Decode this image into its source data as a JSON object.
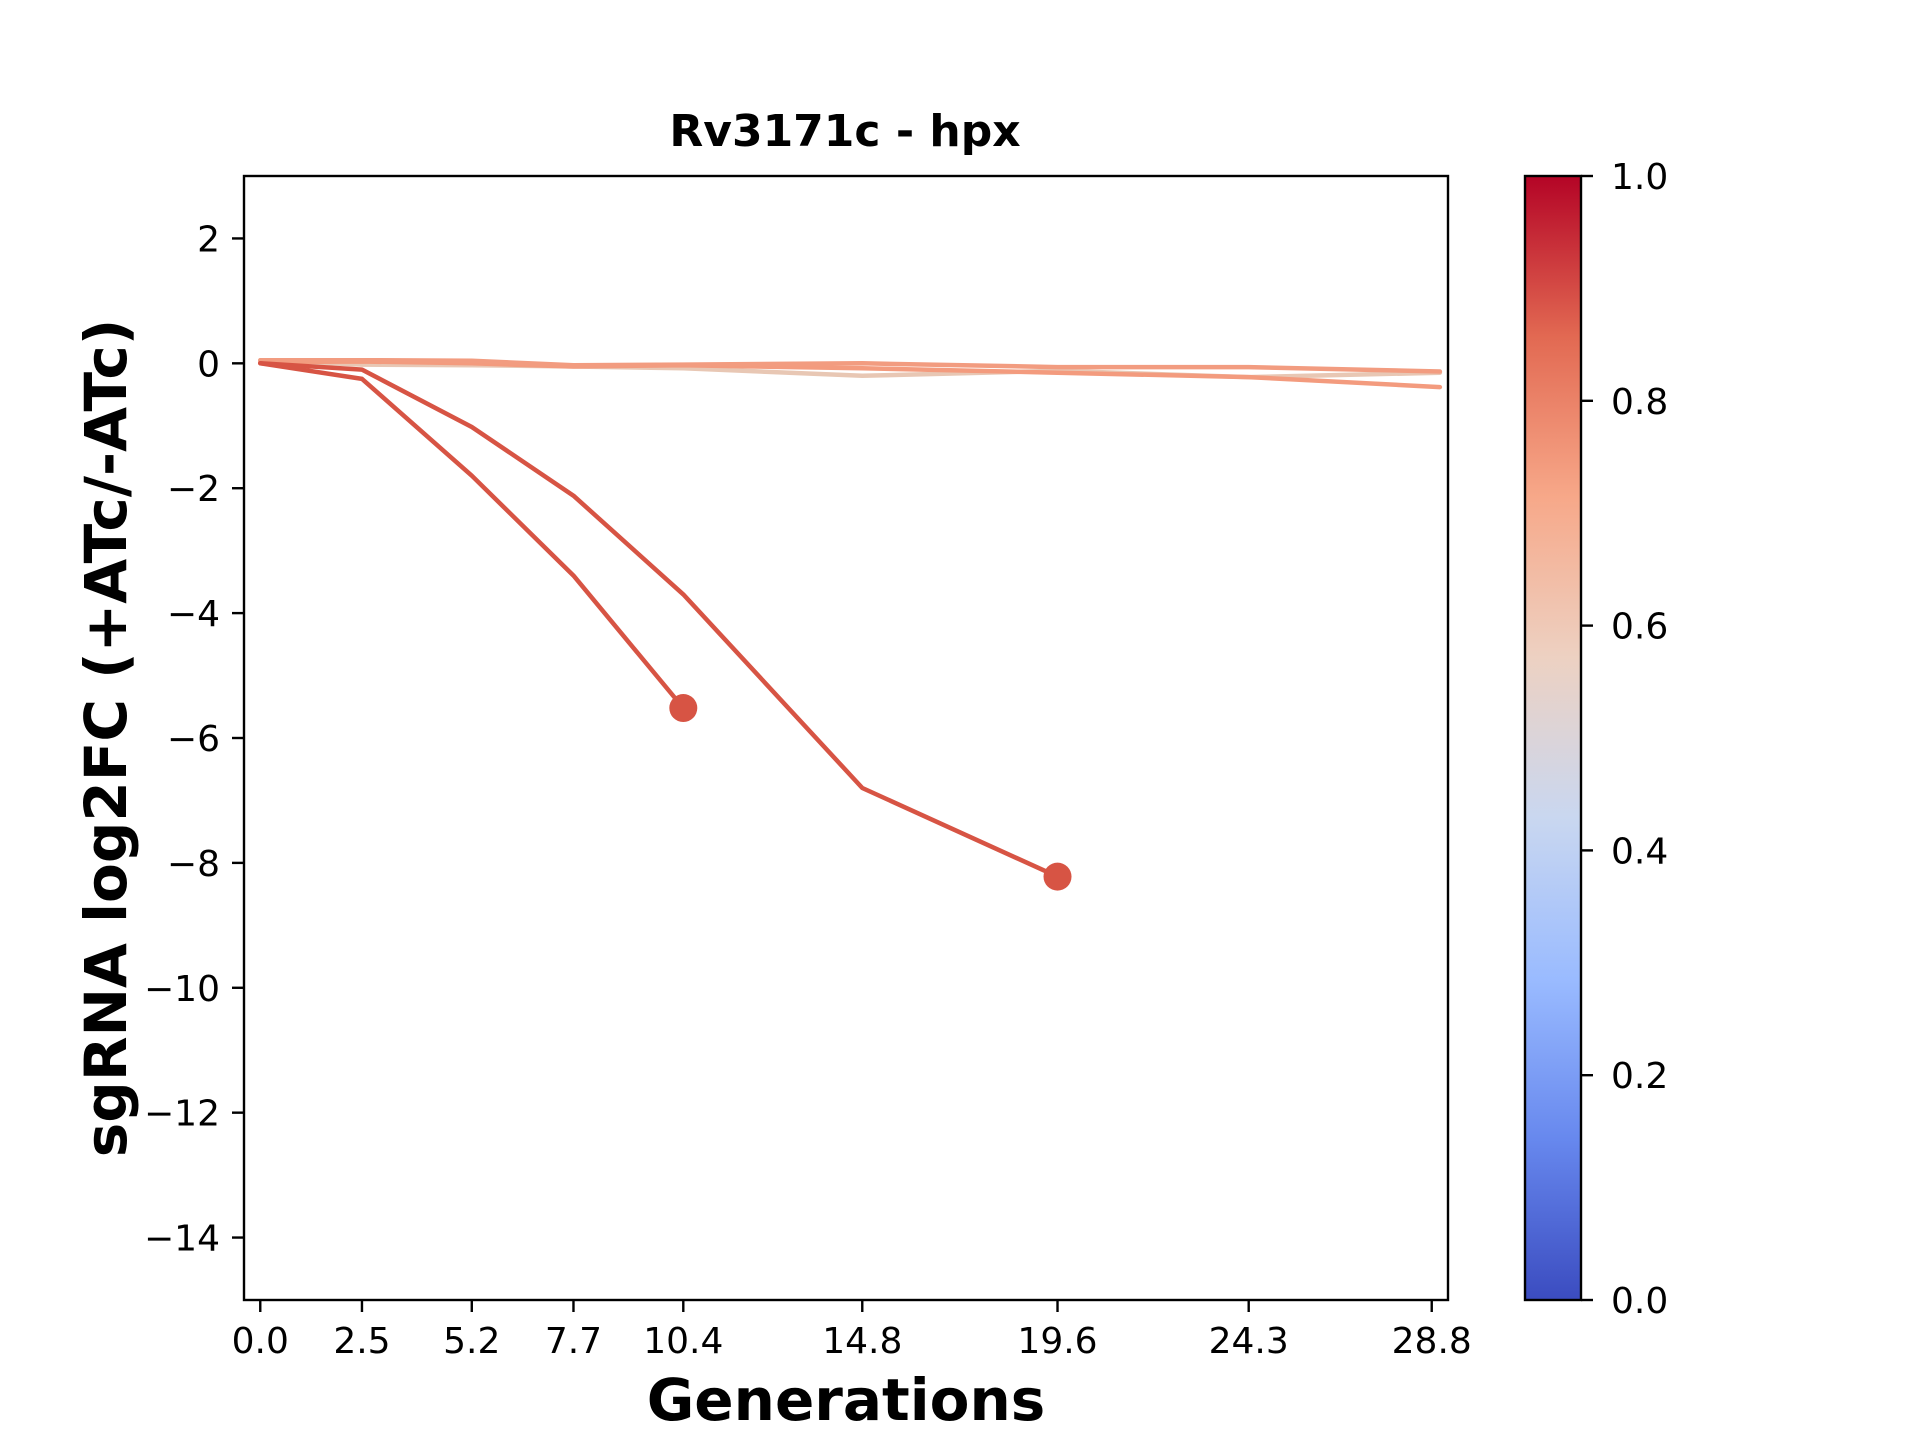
{
  "chart_data": {
    "type": "line",
    "title": "Rv3171c - hpx",
    "xlabel": "Generations",
    "ylabel": "sgRNA log2FC (+ATc/-ATc)",
    "xlim": [
      -0.4,
      29.2
    ],
    "ylim": [
      -15,
      3
    ],
    "grid": false,
    "x_ticks": [
      0.0,
      2.5,
      5.2,
      7.7,
      10.4,
      14.8,
      19.6,
      24.3,
      28.8
    ],
    "x_tick_labels": [
      "0.0",
      "2.5",
      "5.2",
      "7.7",
      "10.4",
      "14.8",
      "19.6",
      "24.3",
      "28.8"
    ],
    "y_ticks": [
      2,
      0,
      -2,
      -4,
      -6,
      -8,
      -10,
      -12,
      -14
    ],
    "y_tick_labels": [
      "2",
      "0",
      "−2",
      "−4",
      "−6",
      "−8",
      "−10",
      "−12",
      "−14"
    ],
    "series": [
      {
        "x": [
          0.0,
          2.5,
          5.2,
          7.7,
          10.4,
          14.8,
          19.6,
          24.3,
          29.0
        ],
        "values": [
          0.05,
          -0.02,
          -0.03,
          -0.05,
          -0.08,
          -0.2,
          -0.12,
          -0.22,
          -0.15
        ],
        "color": "#e8c7b4",
        "endpoint": false
      },
      {
        "x": [
          0.0,
          2.5,
          5.2,
          7.7,
          10.4,
          14.8,
          19.6,
          24.3,
          29.0
        ],
        "values": [
          0.02,
          0.03,
          0.0,
          -0.05,
          -0.03,
          -0.08,
          -0.15,
          -0.22,
          -0.38
        ],
        "color": "#f39b7e",
        "endpoint": false
      },
      {
        "x": [
          0.0,
          2.5,
          5.2,
          7.7,
          10.4,
          14.8,
          19.6,
          24.3,
          29.0
        ],
        "values": [
          0.05,
          0.05,
          0.04,
          -0.03,
          -0.02,
          0.0,
          -0.06,
          -0.06,
          -0.13
        ],
        "color": "#f29c80",
        "endpoint": false
      },
      {
        "x": [
          0.0,
          2.5,
          5.2,
          7.7,
          10.4
        ],
        "values": [
          0.0,
          -0.25,
          -1.8,
          -3.4,
          -5.52
        ],
        "color": "#d75444",
        "endpoint": true
      },
      {
        "x": [
          0.0,
          2.5,
          5.2,
          7.7,
          10.4,
          14.8,
          19.6
        ],
        "values": [
          0.0,
          -0.1,
          -1.02,
          -2.12,
          -3.7,
          -6.8,
          -8.22
        ],
        "color": "#d75444",
        "endpoint": true
      }
    ],
    "colorbar": {
      "range": [
        0.0,
        1.0
      ],
      "ticks": [
        0.0,
        0.2,
        0.4,
        0.6,
        0.8,
        1.0
      ],
      "tick_labels": [
        "0.0",
        "0.2",
        "0.4",
        "0.6",
        "0.8",
        "1.0"
      ],
      "colormap": "coolwarm",
      "stops": [
        "#3b4cc0",
        "#6788ee",
        "#9abbff",
        "#c9d7f0",
        "#edd1c2",
        "#f7a889",
        "#e26952",
        "#b40426"
      ]
    }
  }
}
